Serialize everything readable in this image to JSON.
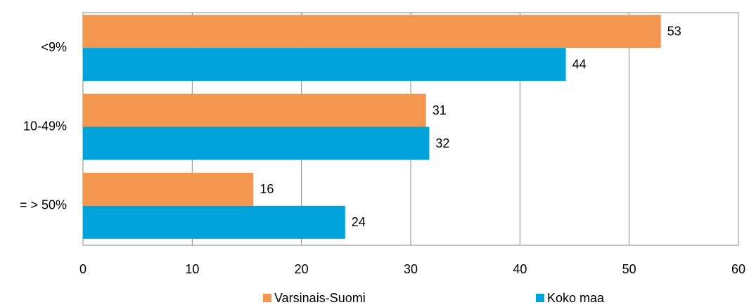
{
  "chart_data": {
    "type": "hbar",
    "categories": [
      "<9%",
      "10-49%",
      "= > 50%"
    ],
    "series": [
      {
        "name": "Varsinais-Suomi",
        "color": "#f29650",
        "values": [
          52.9,
          31.4,
          15.6
        ],
        "value_labels": [
          "53",
          "31",
          "16"
        ]
      },
      {
        "name": "Koko maa",
        "color": "#00a3da",
        "values": [
          44.2,
          31.7,
          24.0
        ],
        "value_labels": [
          "44",
          "32",
          "24"
        ]
      }
    ],
    "xlim": [
      0,
      60
    ],
    "xticks": [
      0,
      10,
      20,
      30,
      40,
      50,
      60
    ],
    "grid": true,
    "legend": "bottom"
  }
}
